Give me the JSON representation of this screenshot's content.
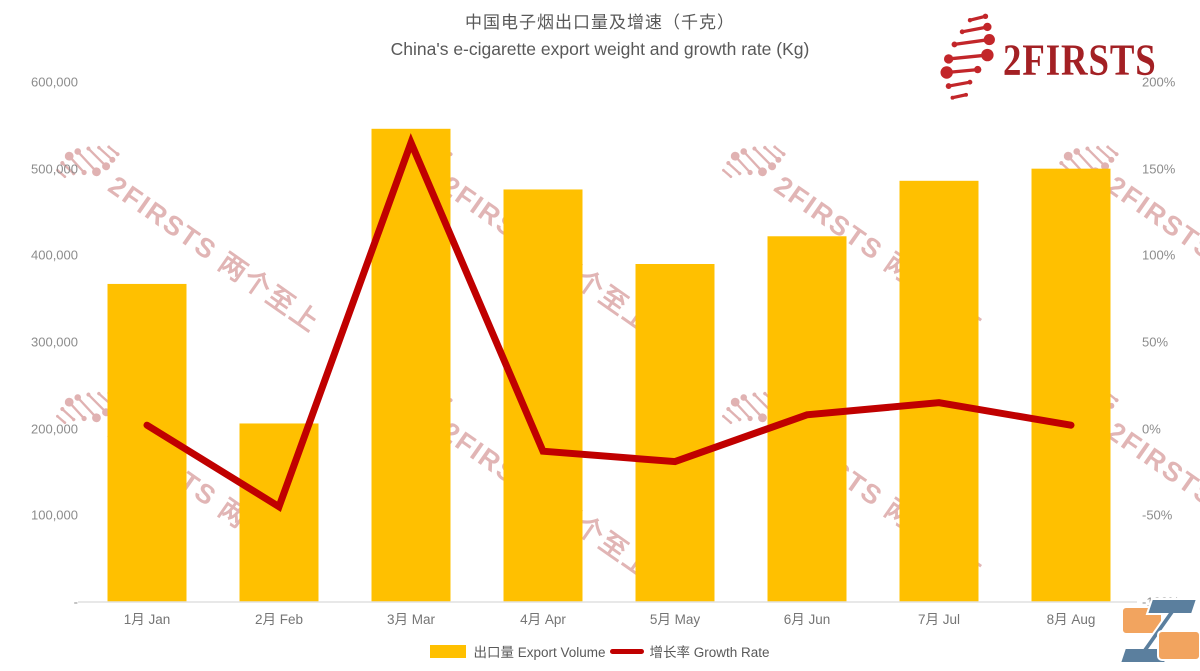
{
  "title": {
    "zh": "中国电子烟出口量及增速（千克）",
    "en": "China's e-cigarette export weight and growth rate (Kg)"
  },
  "logo": {
    "text": "2FIRSTS"
  },
  "watermark": {
    "text": "2FIRSTS 两个至上"
  },
  "legend": {
    "bar_label": "出口量 Export Volume",
    "line_label": "增长率 Growth Rate"
  },
  "colors": {
    "bar": "#FFC000",
    "line": "#C00000",
    "logo_red": "#A32024",
    "watermark_pink": "#E0B2B2",
    "axis_text": "#8C8C8C",
    "title_text": "#595959"
  },
  "chart_data": {
    "type": "bar+line combo",
    "title": "中国电子烟出口量及增速（千克） / China's e-cigarette export weight and growth rate (Kg)",
    "categories": [
      "1月 Jan",
      "2月 Feb",
      "3月 Mar",
      "4月 Apr",
      "5月 May",
      "6月 Jun",
      "7月 Jul",
      "8月 Aug"
    ],
    "series": [
      {
        "name": "出口量 Export Volume",
        "type": "bar",
        "axis": "left",
        "color": "#FFC000",
        "values": [
          367000,
          206000,
          546000,
          476000,
          390000,
          422000,
          486000,
          500000
        ]
      },
      {
        "name": "增长率 Growth Rate",
        "type": "line",
        "axis": "right",
        "color": "#C00000",
        "unit": "%",
        "values": [
          2,
          -45,
          165,
          -13,
          -19,
          8,
          15,
          2
        ]
      }
    ],
    "left_axis": {
      "min": 0,
      "max": 600000,
      "ticks": [
        "600,000",
        "500,000",
        "400,000",
        "300,000",
        "200,000",
        "100,000",
        "-"
      ]
    },
    "right_axis": {
      "min": -100,
      "max": 200,
      "ticks": [
        "200%",
        "150%",
        "100%",
        "50%",
        "0%",
        "-50%",
        "-100%"
      ]
    },
    "grid": "off",
    "legend_position": "bottom-center"
  }
}
